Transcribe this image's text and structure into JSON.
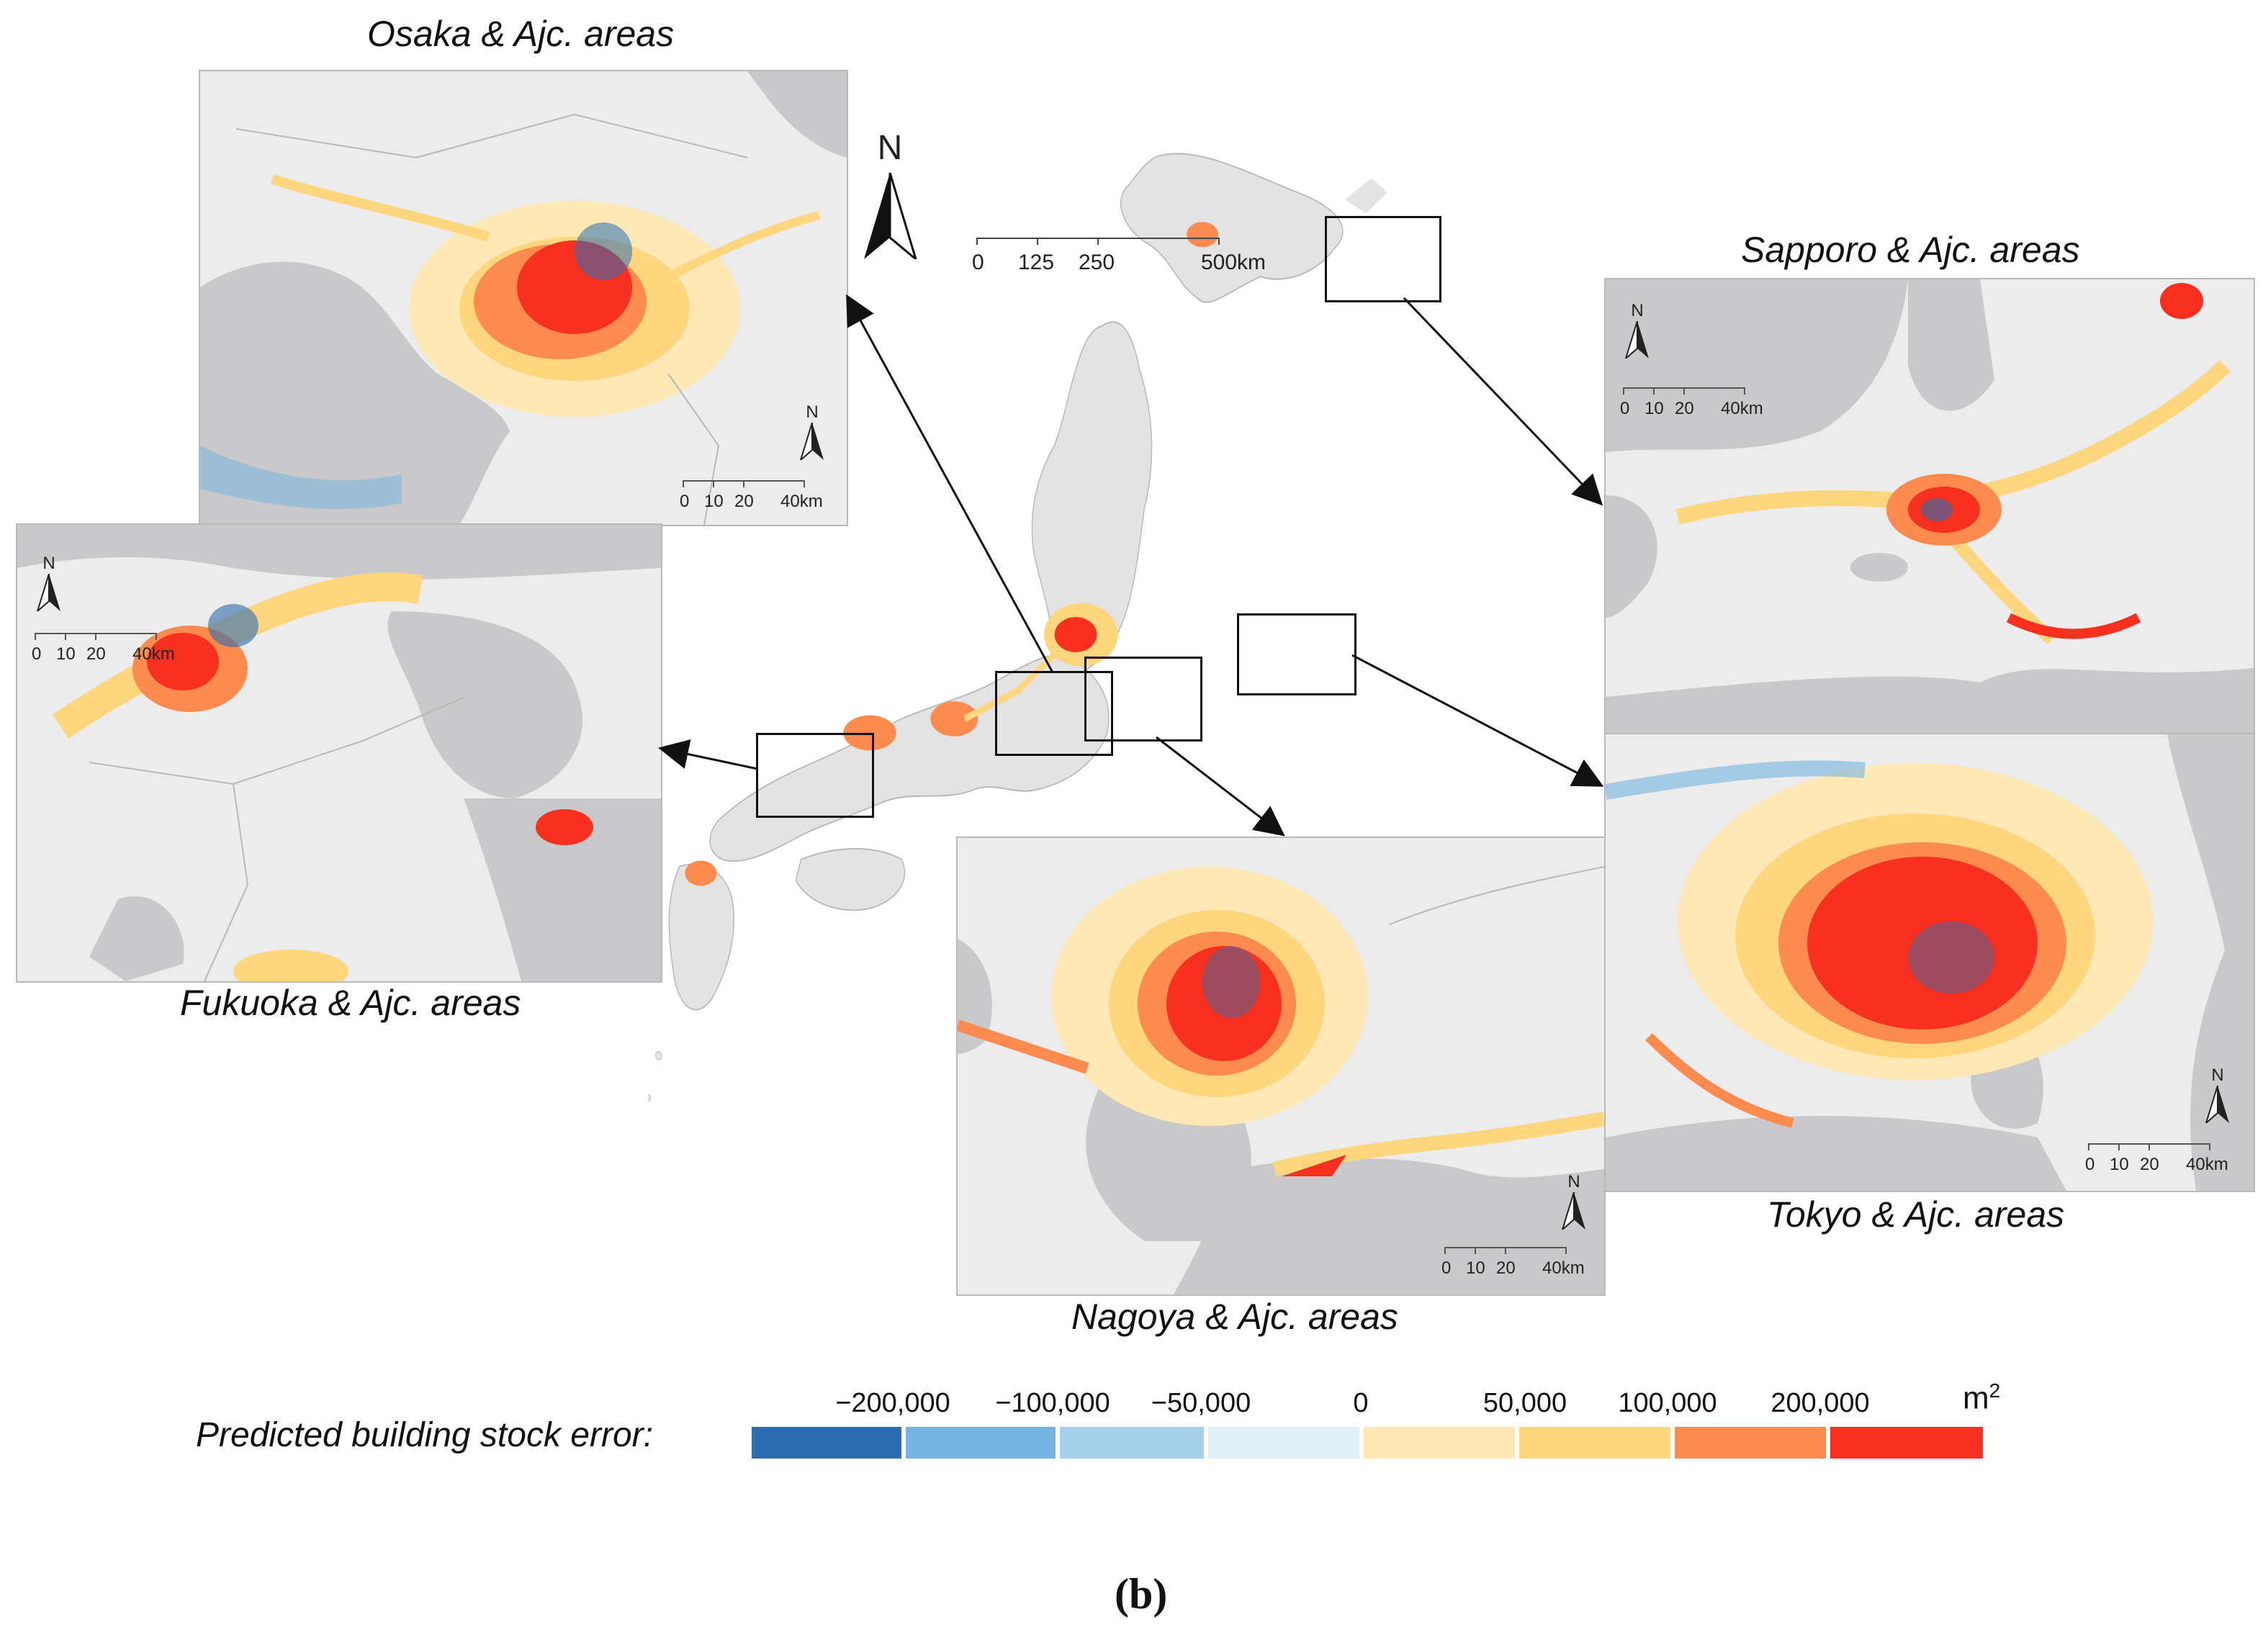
{
  "insets": {
    "osaka": {
      "title": "Osaka & Ajc. areas",
      "scale_labels": [
        "0",
        "10",
        "20",
        "40km"
      ],
      "north": "N"
    },
    "sapporo": {
      "title": "Sapporo & Ajc. areas",
      "scale_labels": [
        "0",
        "10",
        "20",
        "40km"
      ],
      "north": "N"
    },
    "fukuoka": {
      "title": "Fukuoka & Ajc. areas",
      "scale_labels": [
        "0",
        "10",
        "20",
        "40km"
      ],
      "north": "N"
    },
    "nagoya": {
      "title": "Nagoya & Ajc. areas",
      "scale_labels": [
        "0",
        "10",
        "20",
        "40km"
      ],
      "north": "N"
    },
    "tokyo": {
      "title": "Tokyo & Ajc. areas",
      "scale_labels": [
        "0",
        "10",
        "20",
        "40km"
      ],
      "north": "N"
    }
  },
  "main_map": {
    "north": "N",
    "scale_labels": [
      "0",
      "125",
      "250",
      "500",
      "km"
    ]
  },
  "legend": {
    "title": "Predicted building stock error:",
    "tick_labels": [
      "−200,000",
      "−100,000",
      "−50,000",
      "0",
      "50,000",
      "100,000",
      "200,000"
    ],
    "unit": "m",
    "unit_sup": "2",
    "colors": [
      "#2c6db1",
      "#74b4e0",
      "#a6d1ea",
      "#e2f0f6",
      "#fde8b6",
      "#fdd67e",
      "#fd8a4e",
      "#f7301f"
    ]
  },
  "caption": "(b)",
  "colors": {
    "land": "#e8e8e8",
    "water": "#c9c9cc",
    "border_line": "#a8a8a8"
  }
}
